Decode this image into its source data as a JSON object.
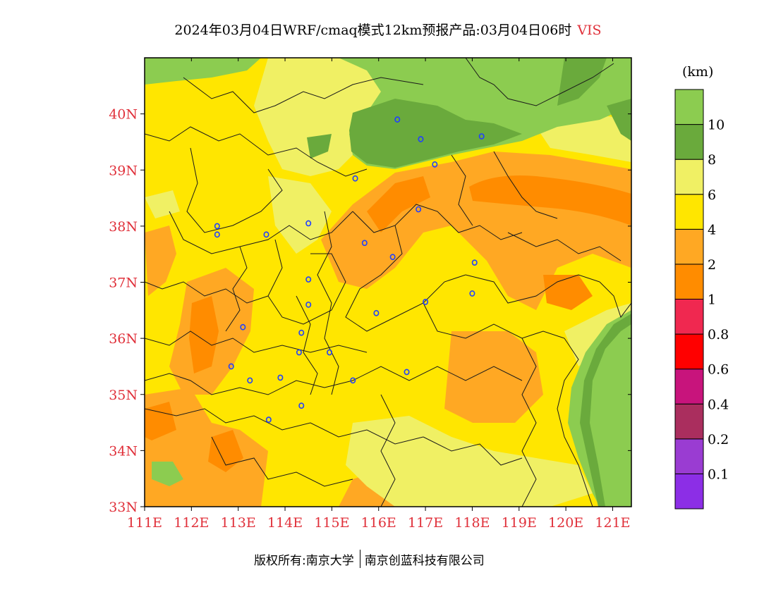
{
  "title": {
    "main": "2024年03月04日WRF/cmaq模式12km预报产品:03月04日06时",
    "variable": "VIS"
  },
  "legend": {
    "unit": "(km)",
    "colors": [
      "#8c2ee6",
      "#9a3cd2",
      "#aa2e5e",
      "#c8147c",
      "#ff0000",
      "#f02850",
      "#ff8c00",
      "#ffa823",
      "#ffe600",
      "#f0f064",
      "#6aaa3c",
      "#8ccc50"
    ],
    "labels": [
      "0.1",
      "0.2",
      "0.4",
      "0.6",
      "0.8",
      "1",
      "2",
      "4",
      "6",
      "8",
      "10"
    ]
  },
  "map": {
    "lon_range": [
      111,
      121.4
    ],
    "lat_range": [
      33,
      41
    ],
    "lon_ticks": [
      "111E",
      "112E",
      "113E",
      "114E",
      "115E",
      "116E",
      "117E",
      "118E",
      "119E",
      "120E",
      "121E"
    ],
    "lat_ticks": [
      "33N",
      "34N",
      "35N",
      "36N",
      "37N",
      "38N",
      "39N",
      "40N"
    ],
    "tick_color": "#e0303a",
    "station_color": "#2040ff"
  },
  "footer": {
    "copyright": "版权所有:南京大学",
    "company": "南京创蓝科技有限公司"
  }
}
